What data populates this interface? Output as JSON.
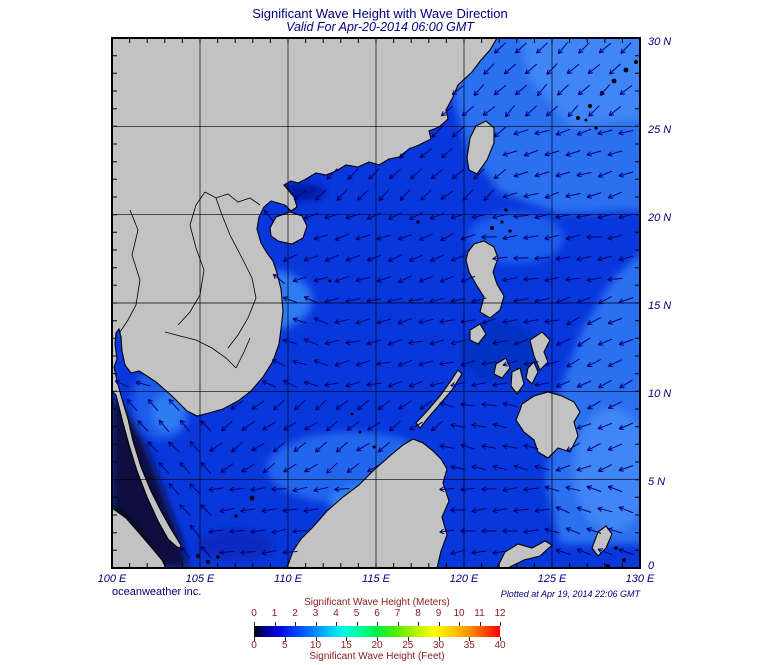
{
  "header": {
    "title": "Significant Wave Height with Wave Direction",
    "valid": "Valid For Apr-20-2014 06:00 GMT"
  },
  "axes": {
    "lat_labels": [
      "30 N",
      "25 N",
      "20 N",
      "15 N",
      "10 N",
      "5 N",
      "0"
    ],
    "lon_labels": [
      "100 E",
      "105 E",
      "110 E",
      "115 E",
      "120 E",
      "125 E",
      "130 E"
    ]
  },
  "credits": {
    "left": "oceanweather inc.",
    "right": "Plotted at Apr 19, 2014 22:06 GMT"
  },
  "legend": {
    "meters_label": "Significant Wave Height (Meters)",
    "feet_label": "Significant Wave Height (Feet)",
    "meters_ticks": [
      "0",
      "1",
      "2",
      "3",
      "4",
      "5",
      "6",
      "7",
      "8",
      "9",
      "10",
      "11",
      "12"
    ],
    "feet_ticks": [
      "0",
      "5",
      "10",
      "15",
      "20",
      "25",
      "30",
      "35",
      "40"
    ],
    "gradient_stops": [
      "#000000 0%",
      "#00008B 4%",
      "#0000E0 10%",
      "#0040FF 17%",
      "#0080FF 24%",
      "#00C0FF 30%",
      "#00FFE0 37%",
      "#00FF99 43%",
      "#00EE44 50%",
      "#55EE00 58%",
      "#AAF000 65%",
      "#FFFF00 73%",
      "#FFC800 81%",
      "#FF8C00 88%",
      "#FF4500 94%",
      "#FF0000 100%"
    ]
  },
  "map": {
    "lon_range": [
      100,
      130
    ],
    "lat_range": [
      0,
      30
    ],
    "grid_interval_deg": 5
  },
  "colors": {
    "title_text": "#00007E",
    "legend_text": "#8B1A1A",
    "land": "#C2C2C2",
    "coastline": "#000000",
    "ocean_base": "#0838DC",
    "ocean_light": "#2B6FF0",
    "ocean_lighter": "#3F86F6",
    "ocean_dark": "#081140",
    "arrow": "#00006E",
    "frame": "#000000"
  },
  "arrows": {
    "spacing": 21,
    "length": 15
  }
}
